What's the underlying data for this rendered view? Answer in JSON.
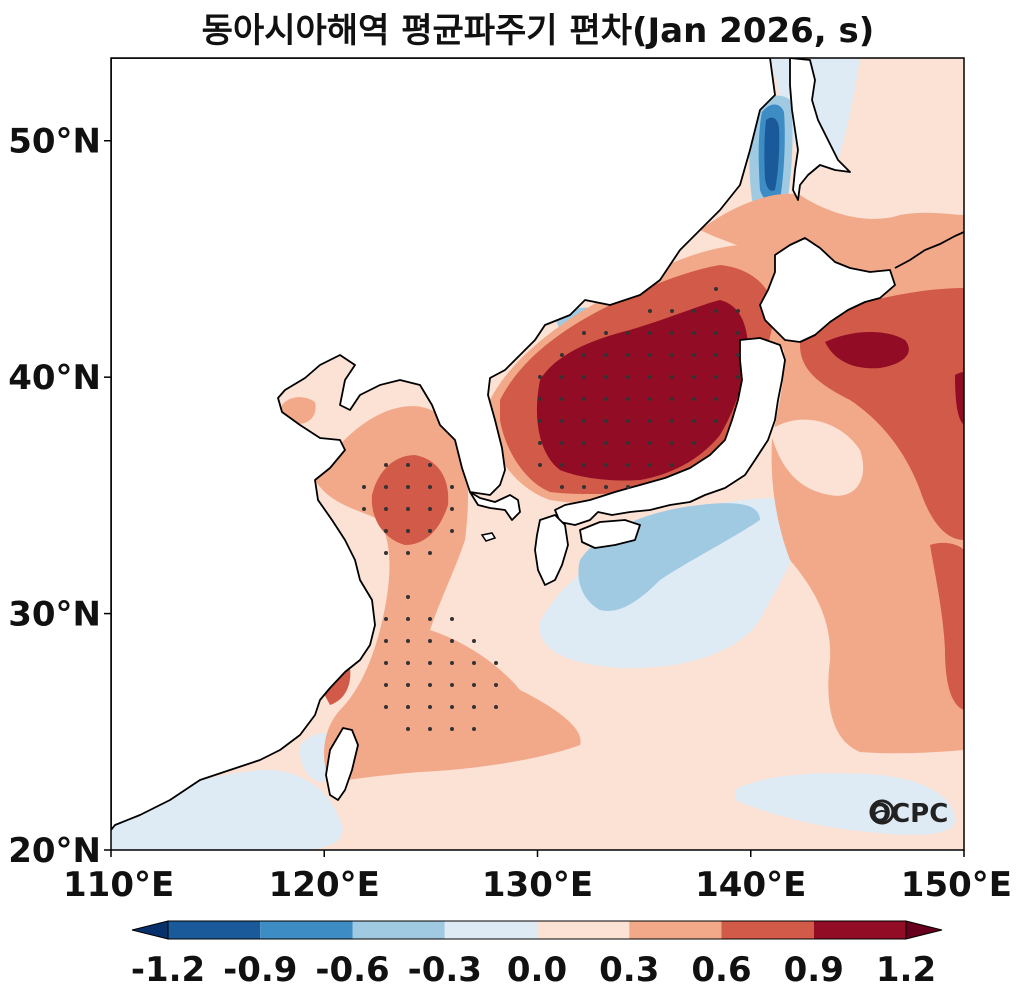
{
  "title": "동아시아해역 평균파주기 편차(Jan 2026, s)",
  "map": {
    "lon_range": [
      110,
      150
    ],
    "lat_range": [
      20,
      53.5
    ],
    "lat_ticks": [
      {
        "value": 20,
        "label": "20°N"
      },
      {
        "value": 30,
        "label": "30°N"
      },
      {
        "value": 40,
        "label": "40°N"
      },
      {
        "value": 50,
        "label": "50°N"
      }
    ],
    "lon_ticks": [
      {
        "value": 110,
        "label": "110°E"
      },
      {
        "value": 120,
        "label": "120°E"
      },
      {
        "value": 130,
        "label": "130°E"
      },
      {
        "value": 140,
        "label": "140°E"
      },
      {
        "value": 150,
        "label": "150°E"
      }
    ],
    "stippling": "significance dots over strongest anomalies (East Sea, Yellow Sea, East China Sea)"
  },
  "colorbar": {
    "labels": [
      "-1.2",
      "-0.9",
      "-0.6",
      "-0.3",
      "0.0",
      "0.3",
      "0.6",
      "0.9",
      "1.2"
    ],
    "colors": [
      "#08306b",
      "#1a5a9a",
      "#3d8cc4",
      "#9fcae1",
      "#deeaf4",
      "#fbe2d5",
      "#f2a98a",
      "#d25a48",
      "#920c25",
      "#67001f"
    ],
    "extend": "both"
  },
  "logo": {
    "text": "OCPC"
  }
}
